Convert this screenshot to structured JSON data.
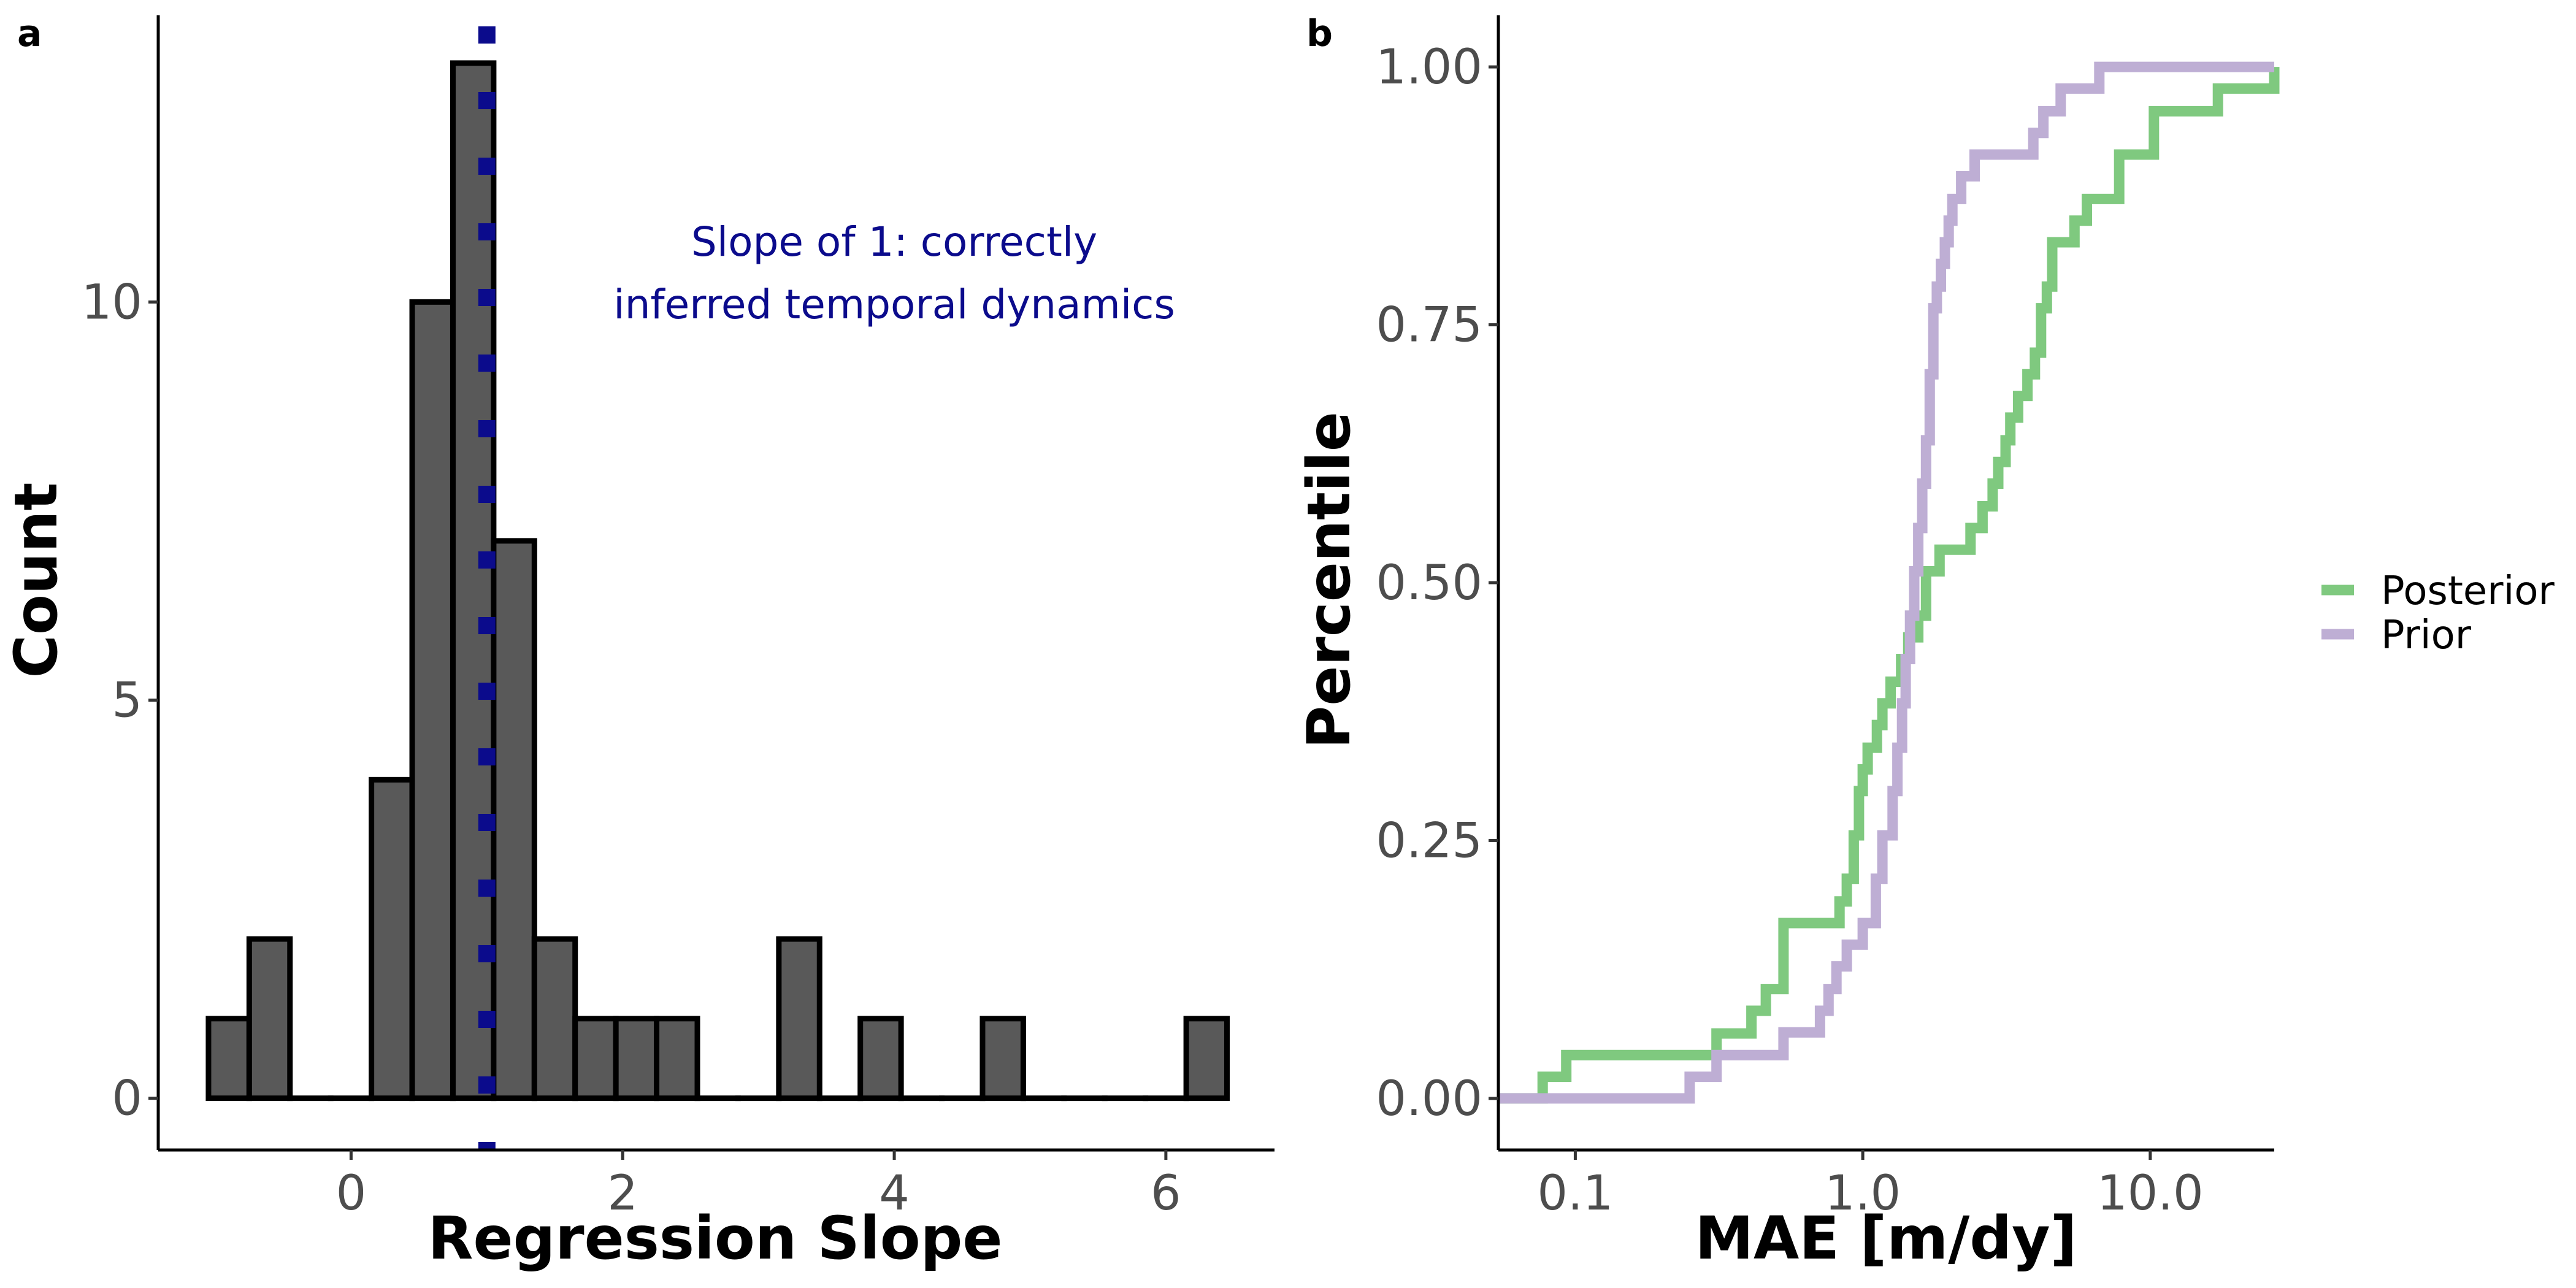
{
  "panel_labels": {
    "a": "a",
    "b": "b"
  },
  "chart_data": [
    {
      "id": "a",
      "type": "bar",
      "subtype": "histogram",
      "title": "",
      "xlabel": "Regression Slope",
      "ylabel": "Count",
      "xlim": [
        -1.42,
        6.8
      ],
      "ylim": [
        -0.65,
        13.6
      ],
      "xticks": [
        0,
        2,
        4,
        6
      ],
      "yticks": [
        0,
        5,
        10
      ],
      "bin_width": 0.3,
      "bin_starts": [
        -1.05,
        -0.75,
        -0.45,
        -0.15,
        0.15,
        0.45,
        0.75,
        1.05,
        1.35,
        1.65,
        1.95,
        2.25,
        2.55,
        2.85,
        3.15,
        3.45,
        3.75,
        4.05,
        4.35,
        4.65,
        4.95,
        5.25,
        5.55,
        5.85,
        6.15
      ],
      "counts": [
        1,
        2,
        0,
        0,
        4,
        10,
        13,
        7,
        2,
        1,
        1,
        1,
        0,
        0,
        2,
        0,
        1,
        0,
        0,
        1,
        0,
        0,
        0,
        0,
        1
      ],
      "bar_color": "#595959",
      "reference_line": {
        "x": 1,
        "color": "#0b0b8c",
        "style": "dotted"
      },
      "annotation": {
        "lines": [
          "Slope of 1: correctly",
          "inferred temporal dynamics"
        ],
        "x": 4.0,
        "y": 10.35,
        "color": "#0b0b8c"
      },
      "grid": false
    },
    {
      "id": "b",
      "type": "line",
      "subtype": "ecdf-step",
      "title": "",
      "xlabel": "MAE [m/dy]",
      "ylabel": "Percentile",
      "xscale": "log",
      "xlim": [
        0.054,
        27
      ],
      "ylim": [
        -0.05,
        1.05
      ],
      "xticks": [
        0.1,
        1.0,
        10.0
      ],
      "xtick_labels": [
        "0.1",
        "1.0",
        "10.0"
      ],
      "yticks": [
        0.0,
        0.25,
        0.5,
        0.75,
        1.0
      ],
      "ytick_labels": [
        "0.00",
        "0.25",
        "0.50",
        "0.75",
        "1.00"
      ],
      "legend_position": "right",
      "grid": false,
      "series": [
        {
          "name": "Posterior",
          "color": "#7fc97f",
          "x": [
            0.054,
            0.077,
            0.093,
            0.31,
            0.41,
            0.46,
            0.53,
            0.83,
            0.88,
            0.93,
            0.97,
            1.0,
            1.04,
            1.12,
            1.17,
            1.25,
            1.36,
            1.44,
            1.56,
            1.66,
            1.85,
            2.37,
            2.61,
            2.83,
            2.96,
            3.14,
            3.26,
            3.47,
            3.74,
            3.97,
            4.17,
            4.37,
            4.56,
            5.45,
            6.02,
            7.8,
            10.3,
            17.2,
            27
          ],
          "y": [
            0.0,
            0.021,
            0.042,
            0.063,
            0.085,
            0.106,
            0.17,
            0.191,
            0.213,
            0.255,
            0.298,
            0.319,
            0.34,
            0.362,
            0.383,
            0.404,
            0.426,
            0.447,
            0.468,
            0.511,
            0.532,
            0.553,
            0.574,
            0.596,
            0.617,
            0.638,
            0.66,
            0.681,
            0.702,
            0.723,
            0.766,
            0.787,
            0.83,
            0.851,
            0.872,
            0.915,
            0.957,
            0.979,
            1.0
          ]
        },
        {
          "name": "Prior",
          "color": "#beaed4",
          "x": [
            0.054,
            0.25,
            0.31,
            0.53,
            0.71,
            0.76,
            0.81,
            0.88,
            1.0,
            1.11,
            1.17,
            1.27,
            1.32,
            1.37,
            1.41,
            1.46,
            1.51,
            1.56,
            1.61,
            1.66,
            1.71,
            1.76,
            1.81,
            1.87,
            1.93,
            1.99,
            2.05,
            2.2,
            2.45,
            2.62,
            3.92,
            4.25,
            4.88,
            6.65,
            27
          ],
          "y": [
            0.0,
            0.021,
            0.042,
            0.064,
            0.085,
            0.106,
            0.128,
            0.149,
            0.17,
            0.213,
            0.255,
            0.298,
            0.34,
            0.383,
            0.426,
            0.468,
            0.511,
            0.553,
            0.596,
            0.638,
            0.702,
            0.766,
            0.787,
            0.809,
            0.83,
            0.851,
            0.872,
            0.894,
            0.915,
            0.915,
            0.936,
            0.957,
            0.979,
            1.0,
            1.0
          ]
        }
      ]
    }
  ]
}
